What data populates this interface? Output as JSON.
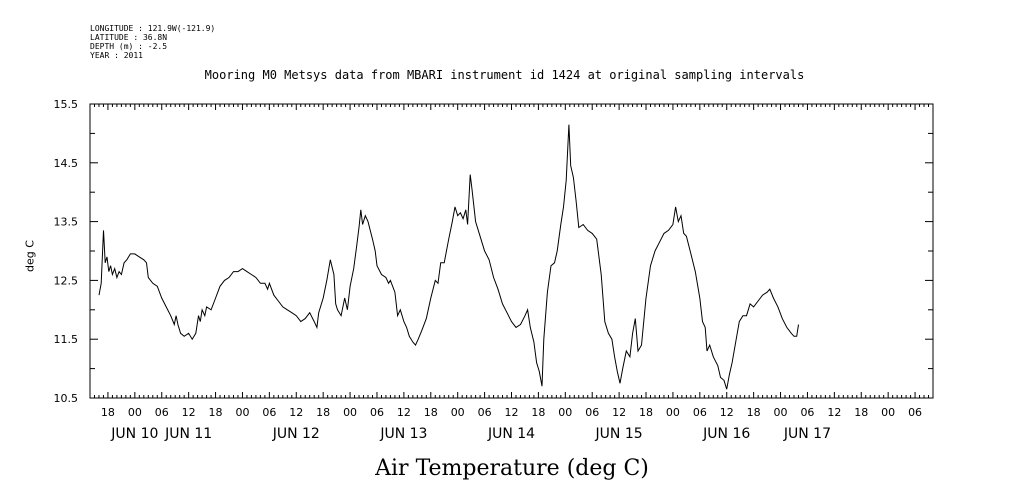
{
  "header": {
    "longitude": "LONGITUDE : 121.9W(-121.9)",
    "latitude": "LATITUDE : 36.8N",
    "depth": "DEPTH (m) : -2.5",
    "year": "YEAR : 2011"
  },
  "chart_data": {
    "type": "line",
    "title": "Mooring M0 Metsys data from MBARI instrument id 1424 at original sampling intervals",
    "xlabel": "Air Temperature (deg C)",
    "ylabel": "deg C",
    "ylim": [
      10.5,
      15.5
    ],
    "xlim_hours_note": "x values are hours after JUN 10 00:00",
    "yticks": [
      "10.5",
      "11.5",
      "12.5",
      "13.5",
      "14.5",
      "15.5"
    ],
    "hour_ticks": [
      {
        "t": -6,
        "label": "18"
      },
      {
        "t": 0,
        "label": "00"
      },
      {
        "t": 6,
        "label": "06"
      },
      {
        "t": 12,
        "label": "12"
      },
      {
        "t": 18,
        "label": "18"
      },
      {
        "t": 24,
        "label": "00"
      },
      {
        "t": 30,
        "label": "06"
      },
      {
        "t": 36,
        "label": "12"
      },
      {
        "t": 42,
        "label": "18"
      },
      {
        "t": 48,
        "label": "00"
      },
      {
        "t": 54,
        "label": "06"
      },
      {
        "t": 60,
        "label": "12"
      },
      {
        "t": 66,
        "label": "18"
      },
      {
        "t": 72,
        "label": "00"
      },
      {
        "t": 78,
        "label": "06"
      },
      {
        "t": 84,
        "label": "12"
      },
      {
        "t": 90,
        "label": "18"
      },
      {
        "t": 96,
        "label": "00"
      },
      {
        "t": 102,
        "label": "06"
      },
      {
        "t": 108,
        "label": "12"
      },
      {
        "t": 114,
        "label": "18"
      },
      {
        "t": 120,
        "label": "00"
      },
      {
        "t": 126,
        "label": "06"
      },
      {
        "t": 132,
        "label": "12"
      },
      {
        "t": 138,
        "label": "18"
      },
      {
        "t": 144,
        "label": "00"
      },
      {
        "t": 150,
        "label": "06"
      },
      {
        "t": 156,
        "label": "12"
      },
      {
        "t": 162,
        "label": "18"
      },
      {
        "t": 168,
        "label": "00"
      },
      {
        "t": 174,
        "label": "06"
      }
    ],
    "date_labels": [
      {
        "t": 0,
        "label": "JUN 10"
      },
      {
        "t": 12,
        "label": "JUN 11"
      },
      {
        "t": 36,
        "label": "JUN 12"
      },
      {
        "t": 60,
        "label": "JUN 13"
      },
      {
        "t": 84,
        "label": "JUN 14"
      },
      {
        "t": 108,
        "label": "JUN 15"
      },
      {
        "t": 132,
        "label": "JUN 16"
      },
      {
        "t": 150,
        "label": "JUN 17"
      }
    ],
    "series": [
      {
        "values": [
          [
            -8,
            12.25
          ],
          [
            -7.5,
            12.45
          ],
          [
            -7,
            13.35
          ],
          [
            -6.6,
            12.8
          ],
          [
            -6.2,
            12.9
          ],
          [
            -5.8,
            12.65
          ],
          [
            -5.4,
            12.75
          ],
          [
            -5,
            12.6
          ],
          [
            -4.5,
            12.7
          ],
          [
            -4,
            12.55
          ],
          [
            -3.5,
            12.65
          ],
          [
            -3,
            12.6
          ],
          [
            -2.4,
            12.8
          ],
          [
            -1.8,
            12.85
          ],
          [
            -1,
            12.95
          ],
          [
            0,
            12.95
          ],
          [
            1,
            12.9
          ],
          [
            2,
            12.85
          ],
          [
            2.6,
            12.8
          ],
          [
            3,
            12.55
          ],
          [
            4,
            12.45
          ],
          [
            5,
            12.4
          ],
          [
            6,
            12.2
          ],
          [
            7,
            12.05
          ],
          [
            8,
            11.9
          ],
          [
            8.8,
            11.75
          ],
          [
            9.2,
            11.9
          ],
          [
            9.6,
            11.75
          ],
          [
            10.2,
            11.6
          ],
          [
            11,
            11.55
          ],
          [
            12,
            11.6
          ],
          [
            12.8,
            11.5
          ],
          [
            13.6,
            11.6
          ],
          [
            14.2,
            11.9
          ],
          [
            14.6,
            11.8
          ],
          [
            15,
            12.0
          ],
          [
            15.6,
            11.9
          ],
          [
            16,
            12.05
          ],
          [
            17,
            12.0
          ],
          [
            18,
            12.2
          ],
          [
            19,
            12.4
          ],
          [
            20,
            12.5
          ],
          [
            21,
            12.55
          ],
          [
            22,
            12.65
          ],
          [
            23,
            12.65
          ],
          [
            24,
            12.7
          ],
          [
            25,
            12.65
          ],
          [
            26,
            12.6
          ],
          [
            27,
            12.55
          ],
          [
            28,
            12.45
          ],
          [
            29,
            12.45
          ],
          [
            29.6,
            12.35
          ],
          [
            30,
            12.45
          ],
          [
            31,
            12.25
          ],
          [
            32,
            12.15
          ],
          [
            33,
            12.05
          ],
          [
            34,
            12.0
          ],
          [
            35,
            11.95
          ],
          [
            36,
            11.9
          ],
          [
            37,
            11.8
          ],
          [
            38,
            11.85
          ],
          [
            39,
            11.95
          ],
          [
            40,
            11.8
          ],
          [
            40.6,
            11.7
          ],
          [
            41,
            11.95
          ],
          [
            42,
            12.2
          ],
          [
            42.8,
            12.5
          ],
          [
            43.6,
            12.85
          ],
          [
            44.4,
            12.6
          ],
          [
            44.8,
            12.1
          ],
          [
            45.2,
            12.0
          ],
          [
            46,
            11.9
          ],
          [
            46.8,
            12.2
          ],
          [
            47.4,
            12.0
          ],
          [
            48,
            12.4
          ],
          [
            48.8,
            12.7
          ],
          [
            49.4,
            13.05
          ],
          [
            50,
            13.4
          ],
          [
            50.4,
            13.7
          ],
          [
            50.8,
            13.45
          ],
          [
            51.4,
            13.6
          ],
          [
            52,
            13.5
          ],
          [
            53,
            13.2
          ],
          [
            53.6,
            13.0
          ],
          [
            54,
            12.75
          ],
          [
            55,
            12.6
          ],
          [
            56,
            12.55
          ],
          [
            56.6,
            12.45
          ],
          [
            57,
            12.5
          ],
          [
            58,
            12.3
          ],
          [
            58.6,
            11.9
          ],
          [
            59.2,
            12.0
          ],
          [
            60,
            11.8
          ],
          [
            60.6,
            11.7
          ],
          [
            61.2,
            11.55
          ],
          [
            62,
            11.45
          ],
          [
            62.6,
            11.4
          ],
          [
            63.2,
            11.5
          ],
          [
            64,
            11.65
          ],
          [
            65,
            11.85
          ],
          [
            66,
            12.2
          ],
          [
            67,
            12.5
          ],
          [
            67.6,
            12.45
          ],
          [
            68.2,
            12.8
          ],
          [
            69,
            12.8
          ],
          [
            70,
            13.2
          ],
          [
            70.8,
            13.5
          ],
          [
            71.4,
            13.75
          ],
          [
            72,
            13.6
          ],
          [
            72.6,
            13.65
          ],
          [
            73.2,
            13.55
          ],
          [
            73.8,
            13.7
          ],
          [
            74.2,
            13.45
          ],
          [
            74.8,
            14.3
          ],
          [
            75.2,
            14.05
          ],
          [
            76,
            13.5
          ],
          [
            77,
            13.25
          ],
          [
            78,
            13.0
          ],
          [
            79,
            12.85
          ],
          [
            80,
            12.55
          ],
          [
            81,
            12.35
          ],
          [
            82,
            12.1
          ],
          [
            83,
            11.95
          ],
          [
            84,
            11.8
          ],
          [
            85,
            11.7
          ],
          [
            86,
            11.75
          ],
          [
            87,
            11.9
          ],
          [
            87.6,
            12.0
          ],
          [
            88.2,
            11.7
          ],
          [
            89,
            11.45
          ],
          [
            89.6,
            11.1
          ],
          [
            90.2,
            10.95
          ],
          [
            90.8,
            10.7
          ],
          [
            91.2,
            11.5
          ],
          [
            92,
            12.3
          ],
          [
            92.8,
            12.75
          ],
          [
            93.6,
            12.8
          ],
          [
            94.2,
            13.0
          ],
          [
            95,
            13.45
          ],
          [
            95.6,
            13.75
          ],
          [
            96.2,
            14.2
          ],
          [
            96.8,
            15.15
          ],
          [
            97.2,
            14.45
          ],
          [
            97.8,
            14.25
          ],
          [
            98.4,
            13.85
          ],
          [
            99,
            13.4
          ],
          [
            100,
            13.45
          ],
          [
            101,
            13.35
          ],
          [
            102,
            13.3
          ],
          [
            103,
            13.2
          ],
          [
            104,
            12.6
          ],
          [
            104.8,
            11.8
          ],
          [
            105.6,
            11.6
          ],
          [
            106.4,
            11.5
          ],
          [
            107,
            11.2
          ],
          [
            107.6,
            10.95
          ],
          [
            108.2,
            10.75
          ],
          [
            108.8,
            11.0
          ],
          [
            109.6,
            11.3
          ],
          [
            110.4,
            11.2
          ],
          [
            111,
            11.6
          ],
          [
            111.6,
            11.85
          ],
          [
            112.2,
            11.3
          ],
          [
            113,
            11.4
          ],
          [
            114,
            12.2
          ],
          [
            115,
            12.75
          ],
          [
            116,
            13.0
          ],
          [
            117,
            13.15
          ],
          [
            118,
            13.3
          ],
          [
            119,
            13.35
          ],
          [
            120,
            13.45
          ],
          [
            120.6,
            13.75
          ],
          [
            121.2,
            13.5
          ],
          [
            121.8,
            13.6
          ],
          [
            122.4,
            13.3
          ],
          [
            123,
            13.25
          ],
          [
            124,
            12.95
          ],
          [
            125,
            12.65
          ],
          [
            126,
            12.2
          ],
          [
            126.6,
            11.8
          ],
          [
            127.2,
            11.7
          ],
          [
            127.6,
            11.3
          ],
          [
            128.2,
            11.4
          ],
          [
            129,
            11.2
          ],
          [
            130,
            11.05
          ],
          [
            130.6,
            10.85
          ],
          [
            131.4,
            10.8
          ],
          [
            132,
            10.65
          ],
          [
            132.6,
            10.9
          ],
          [
            133.2,
            11.1
          ],
          [
            134,
            11.45
          ],
          [
            134.8,
            11.8
          ],
          [
            135.6,
            11.9
          ],
          [
            136.4,
            11.9
          ],
          [
            137.2,
            12.1
          ],
          [
            138,
            12.05
          ],
          [
            139,
            12.15
          ],
          [
            140,
            12.25
          ],
          [
            141,
            12.3
          ],
          [
            141.6,
            12.35
          ],
          [
            142.4,
            12.2
          ],
          [
            143.4,
            12.05
          ],
          [
            144.4,
            11.85
          ],
          [
            145.4,
            11.7
          ],
          [
            146.4,
            11.6
          ],
          [
            147,
            11.55
          ],
          [
            147.6,
            11.55
          ],
          [
            148,
            11.75
          ]
        ]
      }
    ]
  }
}
